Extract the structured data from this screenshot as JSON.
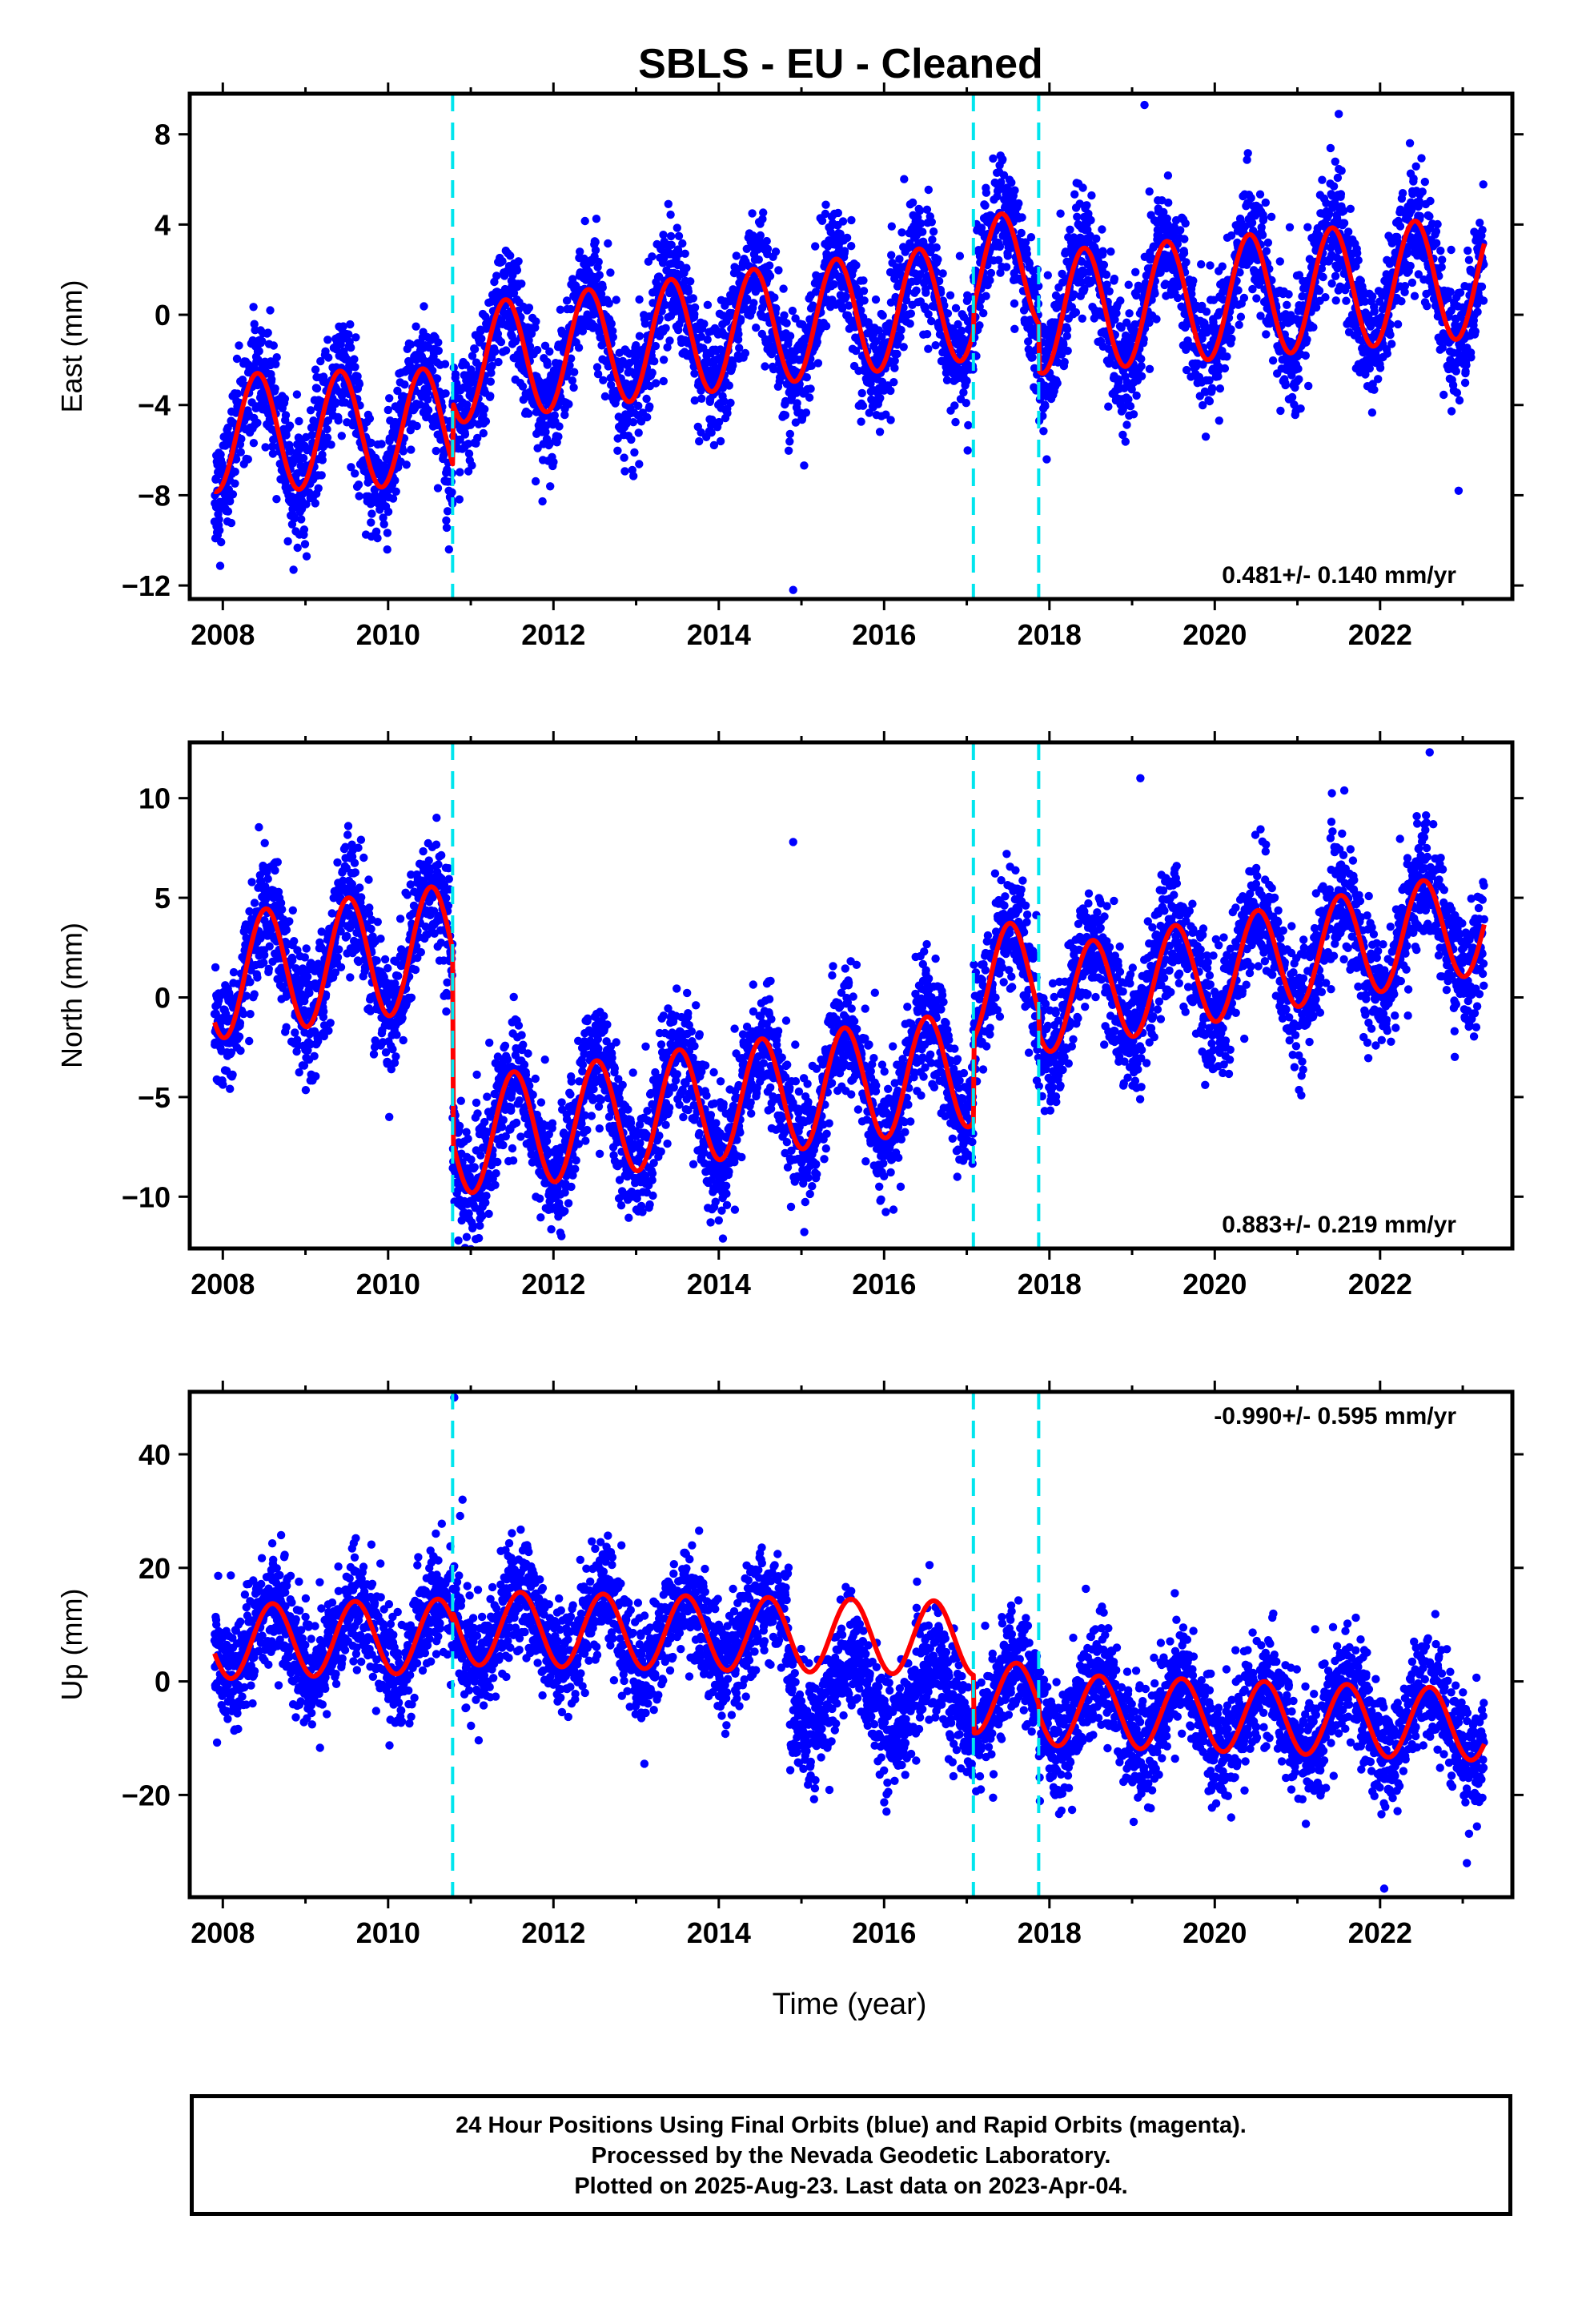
{
  "title": "SBLS  - EU - Cleaned",
  "xlabel": "Time (year)",
  "colors": {
    "final_orbits": "#0000ff",
    "model": "#ff0000",
    "steps": "#00e5ee",
    "frame": "#000000"
  },
  "caption": {
    "line1": "24 Hour Positions Using Final Orbits (blue) and Rapid Orbits (magenta).",
    "line2": "Processed by the Nevada Geodetic Laboratory.",
    "line3": "Plotted on 2025-Aug-23. Last data on 2023-Apr-04."
  },
  "chart_data": [
    {
      "type": "scatter",
      "ylabel": "East (mm)",
      "xlim": [
        2007.6,
        2023.6
      ],
      "ylim": [
        -12.6,
        9.8
      ],
      "xticks": [
        2008,
        2010,
        2012,
        2014,
        2016,
        2018,
        2020,
        2022
      ],
      "yticks": [
        8,
        4,
        0,
        -4,
        -8,
        -12
      ],
      "velocity_label": "0.481+/- 0.140 mm/yr",
      "velocity_label_position": "bottom-right",
      "step_epochs": [
        2010.78,
        2017.08,
        2017.87
      ],
      "data_range": [
        2007.9,
        2023.26
      ],
      "model": {
        "segments": [
          {
            "start": 2007.9,
            "end": 2010.78,
            "offset": -5.1,
            "trend": 0.1,
            "amplitude": 2.6
          },
          {
            "start": 2010.78,
            "end": 2017.08,
            "offset": -0.8,
            "trend": 0.45,
            "amplitude": 2.6
          },
          {
            "start": 2017.08,
            "end": 2017.87,
            "offset": 1.9,
            "trend": 0.45,
            "amplitude": 2.6
          },
          {
            "start": 2017.87,
            "end": 2023.26,
            "offset": 0.9,
            "trend": 0.3,
            "amplitude": 2.7
          }
        ],
        "peak_phase": 0.42
      },
      "scatter_sigma": 1.3,
      "outliers": [
        [
          2014.9,
          -12.2
        ],
        [
          2019.15,
          9.3
        ],
        [
          2021.5,
          8.9
        ],
        [
          2022.95,
          -7.8
        ]
      ]
    },
    {
      "type": "scatter",
      "ylabel": "North (mm)",
      "xlim": [
        2007.6,
        2023.6
      ],
      "ylim": [
        -12.6,
        12.8
      ],
      "xticks": [
        2008,
        2010,
        2012,
        2014,
        2016,
        2018,
        2020,
        2022
      ],
      "yticks": [
        10,
        5,
        0,
        -5,
        -10
      ],
      "velocity_label": "0.883+/- 0.219 mm/yr",
      "velocity_label_position": "bottom-right",
      "step_epochs": [
        2010.78,
        2017.08,
        2017.87
      ],
      "data_range": [
        2007.9,
        2023.26
      ],
      "model": {
        "segments": [
          {
            "start": 2007.9,
            "end": 2010.78,
            "offset": 1.8,
            "trend": 0.55,
            "amplitude": 3.1
          },
          {
            "start": 2010.78,
            "end": 2017.08,
            "offset": -5.3,
            "trend": 0.55,
            "amplitude": 2.9
          },
          {
            "start": 2017.08,
            "end": 2017.87,
            "offset": 0.8,
            "trend": 0.55,
            "amplitude": 2.9
          },
          {
            "start": 2017.87,
            "end": 2023.26,
            "offset": 1.8,
            "trend": 0.75,
            "amplitude": 2.6
          }
        ],
        "peak_phase": 0.52
      },
      "scatter_sigma": 1.5,
      "outliers": [
        [
          2010.85,
          -12.2
        ],
        [
          2014.05,
          -12.1
        ],
        [
          2014.9,
          7.8
        ],
        [
          2016.2,
          -9.5
        ],
        [
          2019.1,
          11.0
        ],
        [
          2022.6,
          12.3
        ]
      ]
    },
    {
      "type": "scatter",
      "ylabel": "Up (mm)",
      "xlim": [
        2007.6,
        2023.6
      ],
      "ylim": [
        -38,
        51
      ],
      "xticks": [
        2008,
        2010,
        2012,
        2014,
        2016,
        2018,
        2020,
        2022
      ],
      "yticks": [
        40,
        20,
        0,
        -20
      ],
      "velocity_label": "-0.990+/- 0.595 mm/yr",
      "velocity_label_position": "top-right",
      "step_epochs": [
        2010.78,
        2017.08,
        2017.87
      ],
      "data_range": [
        2007.9,
        2023.26
      ],
      "model": {
        "segments": [
          {
            "start": 2007.9,
            "end": 2010.78,
            "offset": 7.5,
            "trend": 0.4,
            "amplitude": 6.5
          },
          {
            "start": 2010.78,
            "end": 2017.08,
            "offset": 8.5,
            "trend": -0.3,
            "amplitude": 6.5
          },
          {
            "start": 2017.08,
            "end": 2017.87,
            "offset": -3.0,
            "trend": -0.5,
            "amplitude": 6.3
          },
          {
            "start": 2017.87,
            "end": 2023.26,
            "offset": -6.3,
            "trend": -0.5,
            "amplitude": 6.3
          }
        ],
        "peak_phase": 0.6
      },
      "data_shift": {
        "start": 2014.85,
        "end": 2017.08,
        "delta": -10.5
      },
      "scatter_sigma": 4.8,
      "outliers": [
        [
          2010.8,
          50.0
        ],
        [
          2010.9,
          32.0
        ],
        [
          2013.1,
          -14.5
        ],
        [
          2022.05,
          -36.5
        ],
        [
          2023.05,
          -32.0
        ]
      ]
    }
  ]
}
